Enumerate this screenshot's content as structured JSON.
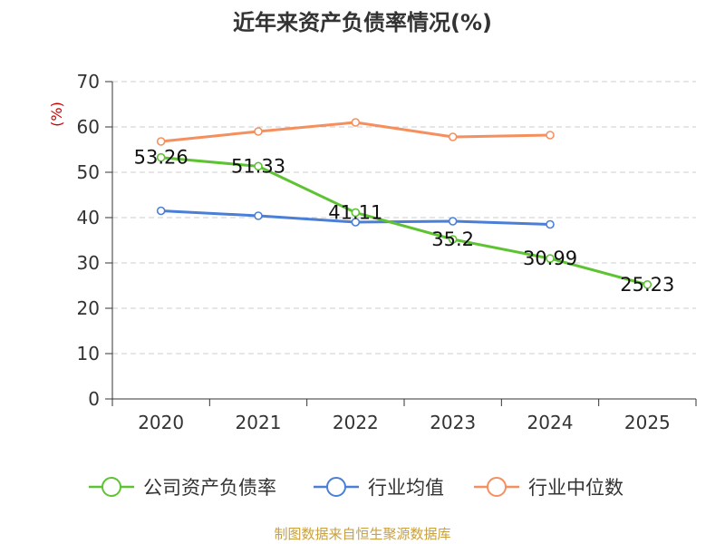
{
  "chart_data": {
    "type": "line",
    "title": "近年来资产负债率情况(%)",
    "ylabel": "(%)",
    "xlabel": "",
    "categories": [
      "2020",
      "2021",
      "2022",
      "2023",
      "2024",
      "2025"
    ],
    "ylim": [
      0,
      70
    ],
    "yticks": [
      0,
      10,
      20,
      30,
      40,
      50,
      60,
      70
    ],
    "grid": true,
    "legend_placement": "bottom",
    "series": [
      {
        "name": "公司资产负债率",
        "color": "#5ec332",
        "values": [
          53.26,
          51.33,
          41.11,
          35.2,
          30.99,
          25.23
        ],
        "labels": [
          "53.26",
          "51.33",
          "41.11",
          "35.2",
          "30.99",
          "25.23"
        ]
      },
      {
        "name": "行业均值",
        "color": "#4a7fd8",
        "values": [
          41.5,
          40.4,
          39.0,
          39.2,
          38.5,
          null
        ]
      },
      {
        "name": "行业中位数",
        "color": "#f5905e",
        "values": [
          56.8,
          59.0,
          61.0,
          57.8,
          58.2,
          null
        ]
      }
    ]
  },
  "source": "制图数据来自恒生聚源数据库"
}
